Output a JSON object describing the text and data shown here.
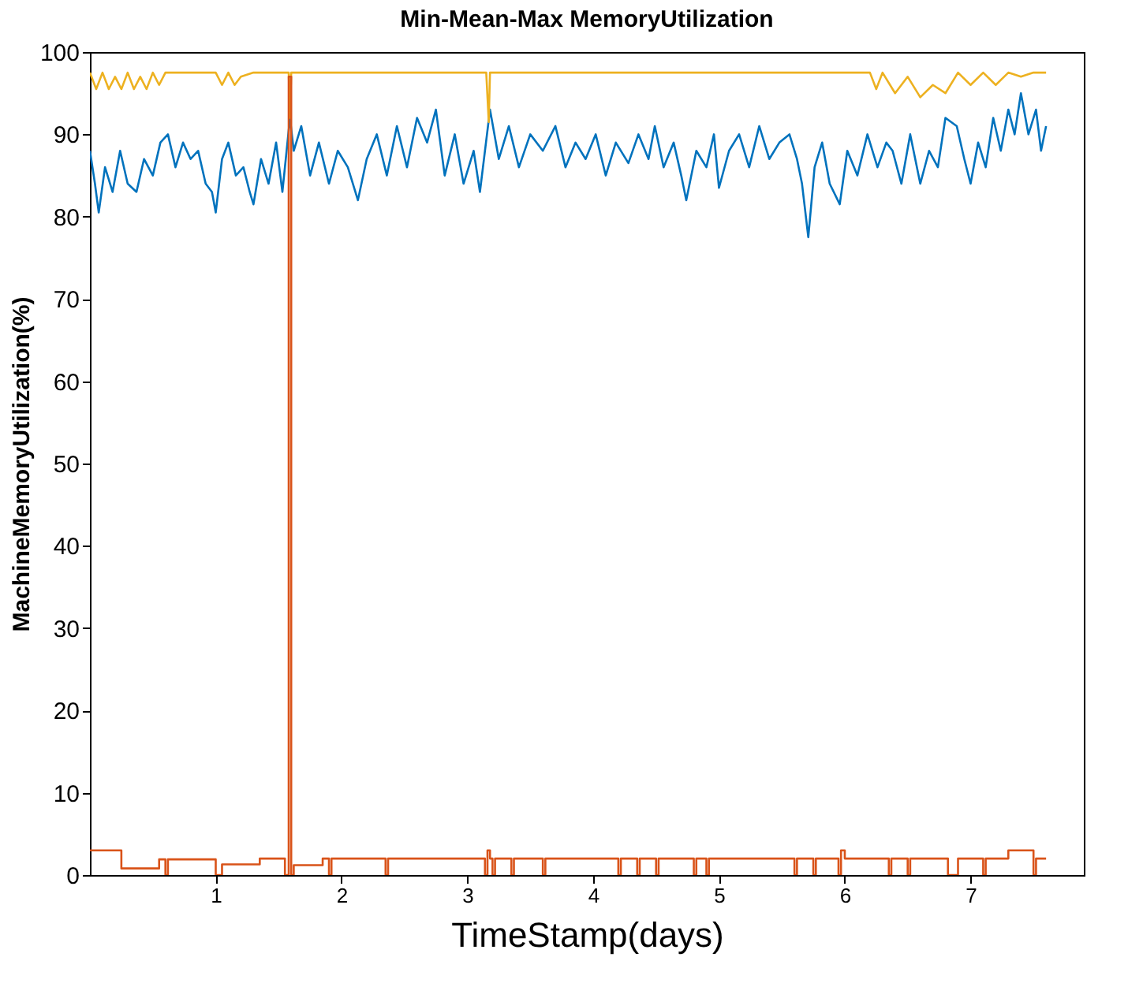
{
  "chart_data": {
    "type": "line",
    "title": "Min-Mean-Max MemoryUtilization",
    "xlabel": "TimeStamp(days)",
    "ylabel": "MachineMemoryUtilization(%)",
    "xlim": [
      0,
      7.9
    ],
    "xticks": [
      1,
      2,
      3,
      4,
      5,
      6,
      7
    ],
    "ylim": [
      0,
      100
    ],
    "yticks": [
      0,
      10,
      20,
      30,
      40,
      50,
      60,
      70,
      80,
      90,
      100
    ],
    "grid": false,
    "line_style": "solid",
    "marker": "none",
    "series": [
      {
        "color": "#0072bd",
        "x": [
          0,
          0.04,
          0.07,
          0.12,
          0.18,
          0.24,
          0.3,
          0.37,
          0.43,
          0.5,
          0.56,
          0.62,
          0.68,
          0.74,
          0.8,
          0.86,
          0.92,
          0.97,
          1.0,
          1.05,
          1.1,
          1.16,
          1.22,
          1.27,
          1.3,
          1.36,
          1.42,
          1.48,
          1.53,
          1.59,
          1.62,
          1.68,
          1.75,
          1.82,
          1.9,
          1.97,
          2.05,
          2.13,
          2.2,
          2.28,
          2.36,
          2.44,
          2.52,
          2.6,
          2.68,
          2.75,
          2.82,
          2.9,
          2.97,
          3.05,
          3.1,
          3.18,
          3.25,
          3.33,
          3.41,
          3.5,
          3.6,
          3.7,
          3.78,
          3.86,
          3.94,
          4.02,
          4.1,
          4.18,
          4.28,
          4.36,
          4.44,
          4.49,
          4.56,
          4.64,
          4.7,
          4.74,
          4.82,
          4.9,
          4.96,
          5.0,
          5.08,
          5.16,
          5.24,
          5.32,
          5.4,
          5.48,
          5.56,
          5.62,
          5.66,
          5.71,
          5.76,
          5.82,
          5.88,
          5.96,
          6.02,
          6.1,
          6.18,
          6.26,
          6.33,
          6.38,
          6.45,
          6.52,
          6.6,
          6.67,
          6.74,
          6.8,
          6.89,
          6.95,
          7.0,
          7.06,
          7.12,
          7.18,
          7.24,
          7.3,
          7.35,
          7.4,
          7.46,
          7.52,
          7.56,
          7.6
        ],
        "values": [
          88,
          84,
          80.5,
          86,
          83,
          88,
          84,
          83,
          87,
          85,
          89,
          90,
          86,
          89,
          87,
          88,
          84,
          83,
          80.5,
          87,
          89,
          85,
          86,
          83,
          81.5,
          87,
          84,
          89,
          83,
          92,
          88,
          91,
          85,
          89,
          84,
          88,
          86,
          82,
          87,
          90,
          85,
          91,
          86,
          92,
          89,
          93,
          85,
          90,
          84,
          88,
          83,
          93,
          87,
          91,
          86,
          90,
          88,
          91,
          86,
          89,
          87,
          90,
          85,
          89,
          86.5,
          90,
          87,
          91,
          86,
          89,
          85,
          82,
          88,
          86,
          90,
          83.5,
          88,
          90,
          86,
          91,
          87,
          89,
          90,
          87,
          84,
          77.5,
          86,
          89,
          84,
          81.5,
          88,
          85,
          90,
          86,
          89,
          88,
          84,
          90,
          84,
          88,
          86,
          92,
          91,
          87,
          84,
          89,
          86,
          92,
          88,
          93,
          90,
          95,
          90,
          93,
          88,
          91
        ]
      },
      {
        "type": "line",
        "color": "#edb120",
        "x": [
          0,
          0.05,
          0.1,
          0.15,
          0.2,
          0.25,
          0.3,
          0.35,
          0.4,
          0.45,
          0.5,
          0.55,
          0.6,
          0.7,
          0.9,
          1.0,
          1.05,
          1.1,
          1.15,
          1.2,
          1.3,
          1.55,
          1.58,
          1.59,
          1.6,
          1.62,
          2.0,
          2.5,
          3.15,
          3.17,
          3.18,
          3.19,
          3.21,
          4.0,
          4.5,
          5.0,
          5.5,
          6.0,
          6.2,
          6.25,
          6.3,
          6.4,
          6.5,
          6.6,
          6.7,
          6.8,
          6.9,
          7.0,
          7.1,
          7.2,
          7.3,
          7.4,
          7.5,
          7.6
        ],
        "values": [
          97.5,
          95.5,
          97.5,
          95.5,
          97,
          95.5,
          97.5,
          95.5,
          97,
          95.5,
          97.5,
          96,
          97.5,
          97.5,
          97.5,
          97.5,
          96,
          97.5,
          96,
          97,
          97.5,
          97.5,
          97.5,
          92,
          97.5,
          97.5,
          97.5,
          97.5,
          97.5,
          91.5,
          97.5,
          97.5,
          97.5,
          97.5,
          97.5,
          97.5,
          97.5,
          97.5,
          97.5,
          95.5,
          97.5,
          95,
          97,
          94.5,
          96,
          95,
          97.5,
          96,
          97.5,
          96,
          97.5,
          97,
          97.5,
          97.5
        ]
      },
      {
        "type": "step",
        "color": "#d95319",
        "x": [
          0,
          0.25,
          0.55,
          0.6,
          0.62,
          1.0,
          1.05,
          1.35,
          1.55,
          1.58,
          1.6,
          1.62,
          1.85,
          1.9,
          1.92,
          2.35,
          2.37,
          3.14,
          3.16,
          3.18,
          3.2,
          3.22,
          3.35,
          3.37,
          3.6,
          3.62,
          4.2,
          4.22,
          4.35,
          4.37,
          4.5,
          4.52,
          4.8,
          4.82,
          4.9,
          4.92,
          5.6,
          5.62,
          5.75,
          5.77,
          5.95,
          5.97,
          6.0,
          6.35,
          6.37,
          6.5,
          6.52,
          6.82,
          6.9,
          7.1,
          7.12,
          7.3,
          7.5,
          7.52,
          7.6
        ],
        "values": [
          3,
          0.8,
          1.9,
          0,
          1.9,
          0,
          1.3,
          2,
          0,
          97,
          0,
          1.2,
          2,
          0,
          2,
          0,
          2,
          0,
          3,
          2,
          0,
          2,
          0,
          2,
          0,
          2,
          0,
          2,
          0,
          2,
          0,
          2,
          0,
          2,
          0,
          2,
          0,
          2,
          0,
          2,
          0,
          3,
          2,
          0,
          2,
          0,
          2,
          0,
          2,
          0,
          2,
          3,
          0,
          2,
          2
        ]
      }
    ]
  }
}
